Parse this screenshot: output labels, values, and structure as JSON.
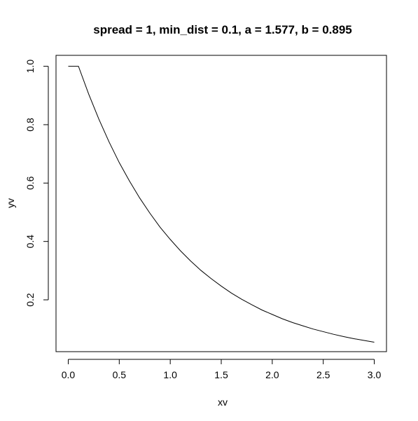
{
  "chart_data": {
    "type": "line",
    "title": "spread = 1, min_dist = 0.1, a = 1.577, b = 0.895",
    "xlabel": "xv",
    "ylabel": "yv",
    "xlim": [
      -0.12,
      3.12
    ],
    "ylim": [
      0.0225,
      1.0375
    ],
    "grid": false,
    "x_ticks": [
      0.0,
      0.5,
      1.0,
      1.5,
      2.0,
      2.5,
      3.0
    ],
    "x_tick_labels": [
      "0.0",
      "0.5",
      "1.0",
      "1.5",
      "2.0",
      "2.5",
      "3.0"
    ],
    "y_ticks": [
      0.2,
      0.4,
      0.6,
      0.8,
      1.0
    ],
    "y_tick_labels": [
      "0.2",
      "0.4",
      "0.6",
      "0.8",
      "1.0"
    ],
    "series": [
      {
        "color": "#000000",
        "x": [
          0.0,
          0.1,
          0.2,
          0.3,
          0.4,
          0.5,
          0.6,
          0.7,
          0.8,
          0.9,
          1.0,
          1.1,
          1.2,
          1.3,
          1.4,
          1.5,
          1.6,
          1.7,
          1.8,
          1.9,
          2.0,
          2.1,
          2.2,
          2.3,
          2.4,
          2.5,
          2.6,
          2.7,
          2.8,
          2.9,
          3.0
        ],
        "y": [
          1.0,
          1.0,
          0.905,
          0.819,
          0.741,
          0.67,
          0.607,
          0.549,
          0.497,
          0.449,
          0.407,
          0.368,
          0.333,
          0.301,
          0.273,
          0.247,
          0.223,
          0.202,
          0.183,
          0.165,
          0.15,
          0.135,
          0.122,
          0.111,
          0.1,
          0.091,
          0.082,
          0.074,
          0.067,
          0.061,
          0.055
        ]
      }
    ]
  }
}
